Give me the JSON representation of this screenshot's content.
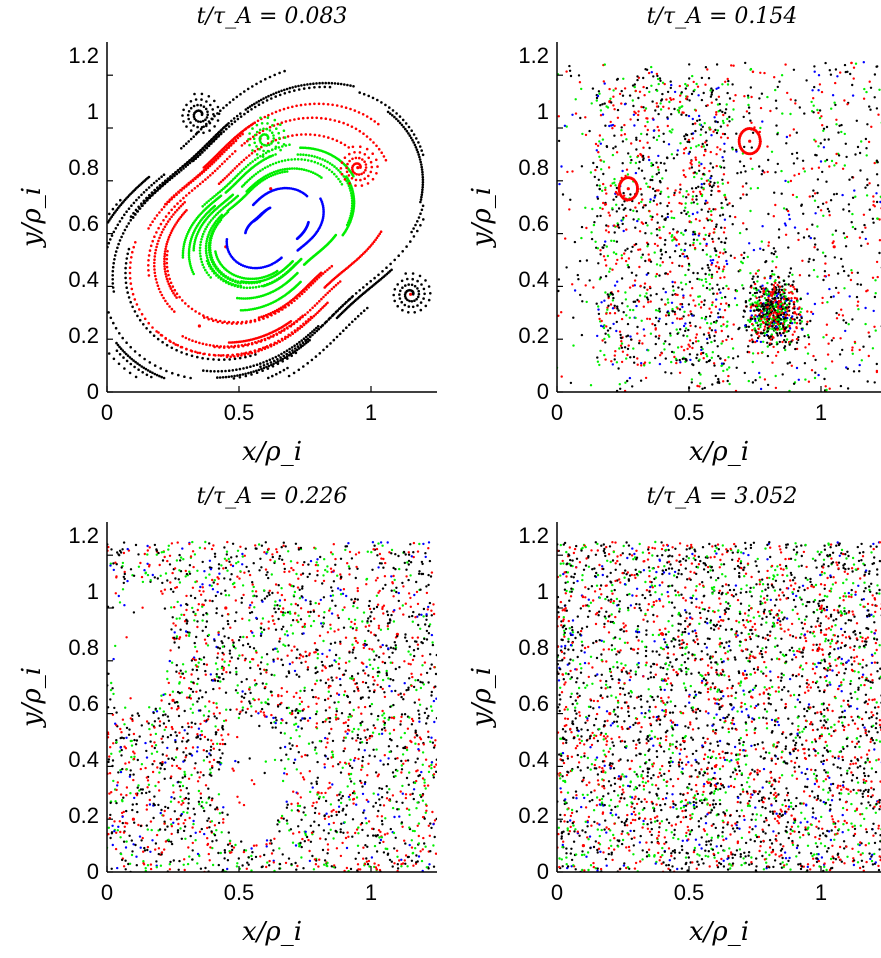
{
  "chart_data": [
    {
      "type": "scatter",
      "title": "t/τ_A = 0.083",
      "xlabel": "x/ρ_i",
      "ylabel": "y/ρ_i",
      "xlim": [
        0,
        1.25
      ],
      "ylim": [
        0,
        1.25
      ],
      "xticks": [
        "0",
        "0.5",
        "1"
      ],
      "yticks": [
        "0",
        "0.2",
        "0.4",
        "0.6",
        "0.8",
        "1",
        "1.2"
      ],
      "pattern": "streamlines",
      "colors": [
        "#000000",
        "#ff0000",
        "#00ee00",
        "#0000ff"
      ],
      "sample_points": [
        [
          0.58,
          0.96
        ],
        [
          0.95,
          0.85
        ],
        [
          0.62,
          0.77
        ],
        [
          1.15,
          0.37
        ],
        [
          0.45,
          0.55
        ],
        [
          0.35,
          0.25
        ]
      ]
    },
    {
      "type": "scatter",
      "title": "t/τ_A = 0.154",
      "xlabel": "x/ρ_i",
      "ylabel": "y/ρ_i",
      "xlim": [
        0,
        1.25
      ],
      "ylim": [
        0,
        1.25
      ],
      "xticks": [
        "0",
        "0.5",
        "1"
      ],
      "yticks": [
        "0",
        "0.2",
        "0.4",
        "0.6",
        "0.8",
        "1",
        "1.2"
      ],
      "pattern": "folded",
      "colors": [
        "#000000",
        "#ff0000",
        "#00ee00",
        "#0000ff"
      ],
      "sample_points": [
        [
          0.27,
          0.77
        ],
        [
          0.73,
          0.95
        ],
        [
          0.9,
          0.3
        ],
        [
          0.35,
          0.5
        ],
        [
          0.2,
          1.1
        ],
        [
          1.05,
          0.55
        ]
      ]
    },
    {
      "type": "scatter",
      "title": "t/τ_A = 0.226",
      "xlabel": "x/ρ_i",
      "ylabel": "y/ρ_i",
      "xlim": [
        0,
        1.25
      ],
      "ylim": [
        0,
        1.25
      ],
      "xticks": [
        "0",
        "0.5",
        "1"
      ],
      "yticks": [
        "0",
        "0.2",
        "0.4",
        "0.6",
        "0.8",
        "1",
        "1.2"
      ],
      "pattern": "mixing",
      "colors": [
        "#000000",
        "#ff0000",
        "#00ee00",
        "#0000ff"
      ],
      "sample_points": [
        [
          0.25,
          0.65
        ],
        [
          0.8,
          0.3
        ],
        [
          0.45,
          1.0
        ],
        [
          0.1,
          0.2
        ],
        [
          1.1,
          0.9
        ],
        [
          0.7,
          0.6
        ]
      ]
    },
    {
      "type": "scatter",
      "title": "t/τ_A = 3.052",
      "xlabel": "x/ρ_i",
      "ylabel": "y/ρ_i",
      "xlim": [
        0,
        1.25
      ],
      "ylim": [
        0,
        1.25
      ],
      "xticks": [
        "0",
        "0.5",
        "1"
      ],
      "yticks": [
        "0",
        "0.2",
        "0.4",
        "0.6",
        "0.8",
        "1",
        "1.2"
      ],
      "pattern": "uniform",
      "colors": [
        "#000000",
        "#ff0000",
        "#00ee00",
        "#0000ff"
      ],
      "sample_points": [
        [
          0.2,
          0.6
        ],
        [
          0.6,
          0.4
        ],
        [
          1.0,
          1.0
        ],
        [
          0.4,
          0.9
        ],
        [
          0.9,
          0.2
        ],
        [
          0.1,
          0.1
        ]
      ]
    }
  ]
}
